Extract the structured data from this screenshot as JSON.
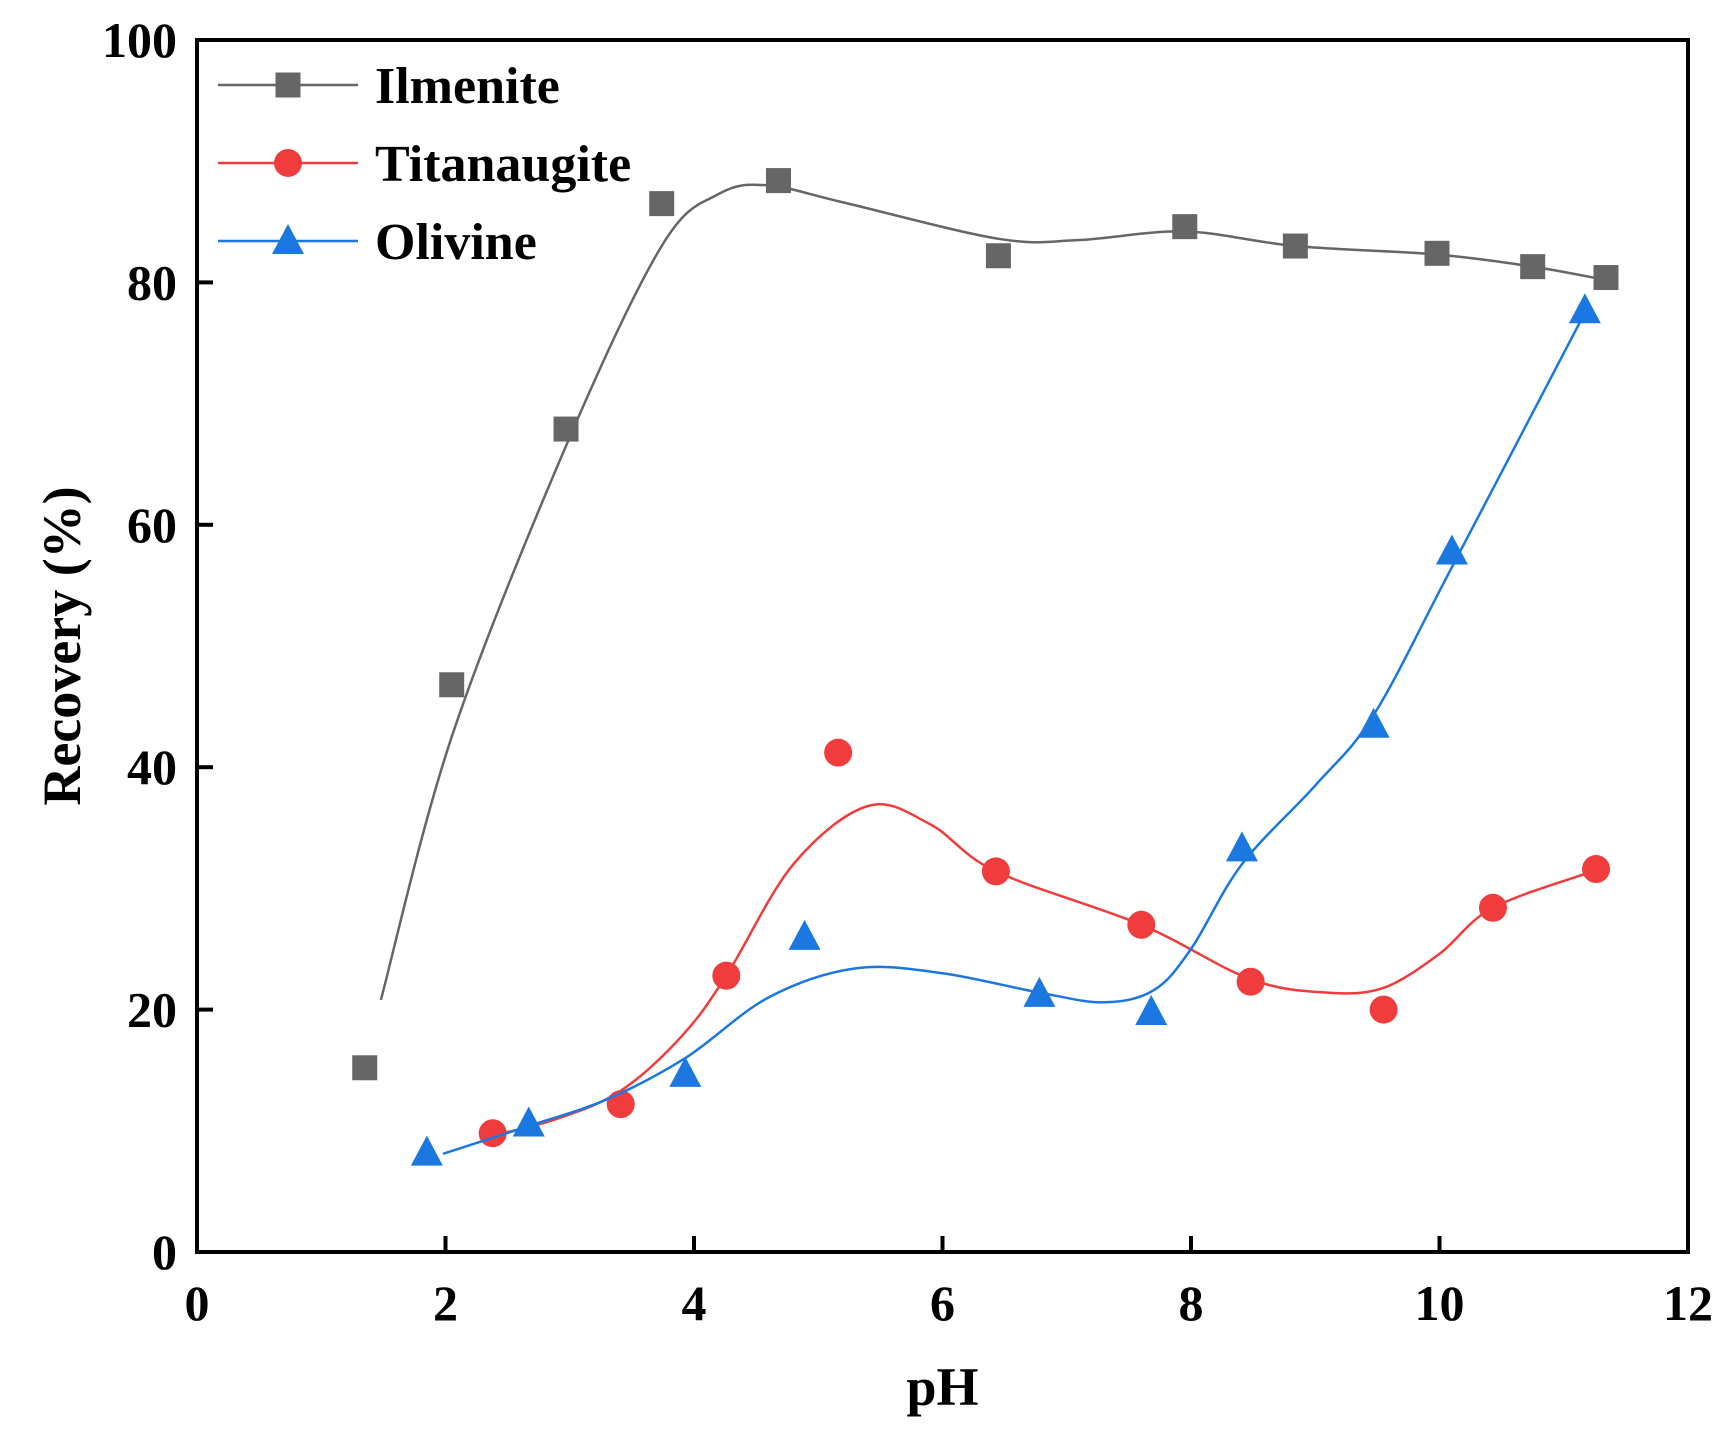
{
  "chart_data": {
    "type": "scatter",
    "title": "",
    "xlabel": "pH",
    "ylabel": "Recovery (%)",
    "xlim": [
      0,
      12
    ],
    "ylim": [
      0,
      100
    ],
    "x_ticks": [
      0,
      2,
      4,
      6,
      8,
      10,
      12
    ],
    "y_ticks": [
      0,
      20,
      40,
      60,
      80,
      100
    ],
    "legend_position": "top-left",
    "grid": false,
    "series": [
      {
        "name": "Ilmenite",
        "marker": "square",
        "color": "#666666",
        "points": [
          {
            "x": 1.35,
            "y": 15.2
          },
          {
            "x": 2.05,
            "y": 46.8
          },
          {
            "x": 2.97,
            "y": 67.9
          },
          {
            "x": 3.74,
            "y": 86.5
          },
          {
            "x": 4.68,
            "y": 88.4
          },
          {
            "x": 6.45,
            "y": 82.2
          },
          {
            "x": 7.95,
            "y": 84.6
          },
          {
            "x": 8.84,
            "y": 83.0
          },
          {
            "x": 9.98,
            "y": 82.4
          },
          {
            "x": 10.75,
            "y": 81.3
          },
          {
            "x": 11.34,
            "y": 80.4
          }
        ],
        "fit_curve": [
          {
            "x": 1.48,
            "y": 20.8
          },
          {
            "x": 2.05,
            "y": 42.5
          },
          {
            "x": 2.97,
            "y": 66.5
          },
          {
            "x": 3.74,
            "y": 83.0
          },
          {
            "x": 4.2,
            "y": 87.3
          },
          {
            "x": 4.6,
            "y": 88.0
          },
          {
            "x": 5.2,
            "y": 86.6
          },
          {
            "x": 6.45,
            "y": 83.6
          },
          {
            "x": 7.1,
            "y": 83.5
          },
          {
            "x": 7.95,
            "y": 84.2
          },
          {
            "x": 8.84,
            "y": 83.0
          },
          {
            "x": 9.98,
            "y": 82.3
          },
          {
            "x": 10.75,
            "y": 81.3
          },
          {
            "x": 11.34,
            "y": 80.2
          }
        ]
      },
      {
        "name": "Titanaugite",
        "marker": "circle",
        "color": "#f03c3c",
        "points": [
          {
            "x": 2.38,
            "y": 9.8
          },
          {
            "x": 3.41,
            "y": 12.2
          },
          {
            "x": 4.26,
            "y": 22.8
          },
          {
            "x": 5.16,
            "y": 41.2
          },
          {
            "x": 6.43,
            "y": 31.4
          },
          {
            "x": 7.6,
            "y": 27.0
          },
          {
            "x": 8.48,
            "y": 22.3
          },
          {
            "x": 9.55,
            "y": 20.0
          },
          {
            "x": 10.43,
            "y": 28.4
          },
          {
            "x": 11.26,
            "y": 31.6
          }
        ],
        "fit_curve": [
          {
            "x": 2.38,
            "y": 9.6
          },
          {
            "x": 2.9,
            "y": 11.0
          },
          {
            "x": 3.41,
            "y": 13.3
          },
          {
            "x": 3.9,
            "y": 17.8
          },
          {
            "x": 4.26,
            "y": 22.8
          },
          {
            "x": 4.8,
            "y": 32.0
          },
          {
            "x": 5.4,
            "y": 36.8
          },
          {
            "x": 5.9,
            "y": 35.3
          },
          {
            "x": 6.43,
            "y": 31.4
          },
          {
            "x": 7.6,
            "y": 27.0
          },
          {
            "x": 8.48,
            "y": 22.5
          },
          {
            "x": 9.1,
            "y": 21.4
          },
          {
            "x": 9.55,
            "y": 21.8
          },
          {
            "x": 10.0,
            "y": 24.6
          },
          {
            "x": 10.43,
            "y": 28.4
          },
          {
            "x": 11.26,
            "y": 31.5
          }
        ]
      },
      {
        "name": "Olivine",
        "marker": "triangle",
        "color": "#1b78e0",
        "points": [
          {
            "x": 1.85,
            "y": 8.2
          },
          {
            "x": 2.67,
            "y": 10.6
          },
          {
            "x": 3.93,
            "y": 14.7
          },
          {
            "x": 4.89,
            "y": 26.0
          },
          {
            "x": 6.78,
            "y": 21.3
          },
          {
            "x": 7.68,
            "y": 19.8
          },
          {
            "x": 8.41,
            "y": 33.3
          },
          {
            "x": 9.47,
            "y": 43.5
          },
          {
            "x": 10.1,
            "y": 57.8
          },
          {
            "x": 11.17,
            "y": 77.7
          }
        ],
        "fit_curve": [
          {
            "x": 1.98,
            "y": 8.1
          },
          {
            "x": 2.67,
            "y": 10.4
          },
          {
            "x": 3.3,
            "y": 12.6
          },
          {
            "x": 3.93,
            "y": 16.0
          },
          {
            "x": 4.6,
            "y": 21.0
          },
          {
            "x": 5.3,
            "y": 23.4
          },
          {
            "x": 6.0,
            "y": 23.0
          },
          {
            "x": 6.78,
            "y": 21.4
          },
          {
            "x": 7.3,
            "y": 20.6
          },
          {
            "x": 7.7,
            "y": 21.6
          },
          {
            "x": 8.0,
            "y": 25.0
          },
          {
            "x": 8.41,
            "y": 32.0
          },
          {
            "x": 9.0,
            "y": 38.5
          },
          {
            "x": 9.47,
            "y": 44.3
          },
          {
            "x": 10.1,
            "y": 56.5
          },
          {
            "x": 11.17,
            "y": 77.5
          }
        ]
      }
    ]
  }
}
